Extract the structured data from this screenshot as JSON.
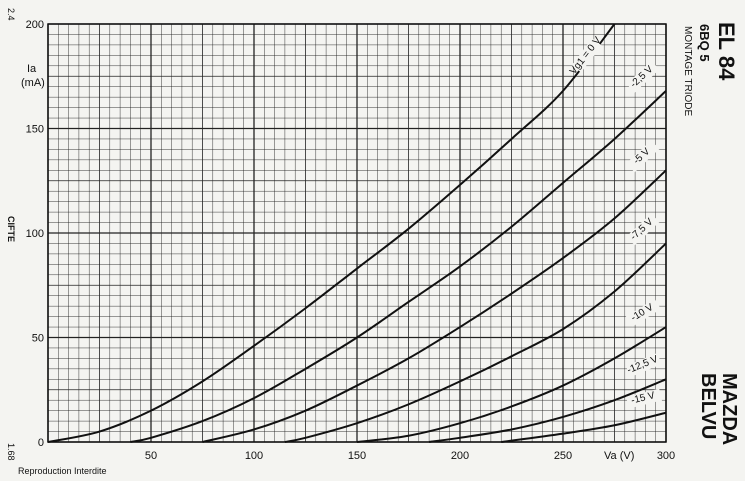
{
  "page": {
    "left_code": "2.4",
    "left_code_bottom": "1.68",
    "cifte": "CIFTE",
    "footer_note": "Reproduction Interdite",
    "tube_title": "EL 84",
    "tube_alt": "6BQ 5",
    "mode": "MONTAGE TRIODE",
    "brand_line1": "MAZDA",
    "brand_line2": "BELVU"
  },
  "chart_data": {
    "type": "line",
    "title": "EL 84",
    "xlabel": "Va (V)",
    "ylabel": "Ia\n(mA)",
    "xlim": [
      0,
      300
    ],
    "ylim": [
      0,
      200
    ],
    "x_ticks": [
      50,
      100,
      150,
      200,
      250,
      300
    ],
    "y_ticks": [
      0,
      50,
      100,
      150,
      200
    ],
    "grid": true,
    "series": [
      {
        "name": "Vg1 = 0 V",
        "label": "Vg1 = 0 V",
        "x": [
          0,
          25,
          50,
          75,
          100,
          125,
          150,
          175,
          200,
          225,
          250,
          275
        ],
        "y": [
          0,
          5,
          15,
          29,
          46,
          64,
          83,
          102,
          123,
          145,
          168,
          200
        ]
      },
      {
        "name": "-2,5 V",
        "label": "-2,5 V",
        "x": [
          40,
          50,
          75,
          100,
          125,
          150,
          175,
          200,
          225,
          250,
          275,
          300
        ],
        "y": [
          0,
          2,
          10,
          21,
          35,
          50,
          67,
          84,
          103,
          124,
          145,
          168
        ]
      },
      {
        "name": "-5 V",
        "label": "-5 V",
        "x": [
          75,
          100,
          125,
          150,
          175,
          200,
          225,
          250,
          275,
          300
        ],
        "y": [
          0,
          6,
          15,
          27,
          40,
          55,
          71,
          88,
          107,
          130
        ]
      },
      {
        "name": "-7,5 V",
        "label": "-7,5 V",
        "x": [
          115,
          125,
          150,
          175,
          200,
          225,
          250,
          275,
          300
        ],
        "y": [
          0,
          2,
          9,
          18,
          29,
          41,
          54,
          72,
          95
        ]
      },
      {
        "name": "-10 V",
        "label": "-10 V",
        "x": [
          150,
          175,
          200,
          225,
          250,
          275,
          300
        ],
        "y": [
          0,
          3,
          9,
          17,
          27,
          40,
          55
        ]
      },
      {
        "name": "-12,5 V",
        "label": "-12,5 V",
        "x": [
          185,
          200,
          225,
          250,
          275,
          300
        ],
        "y": [
          0,
          2,
          6,
          12,
          20,
          30
        ]
      },
      {
        "name": "-15 V",
        "label": "-15 V",
        "x": [
          220,
          250,
          275,
          300
        ],
        "y": [
          0,
          4,
          8,
          14
        ]
      }
    ]
  }
}
